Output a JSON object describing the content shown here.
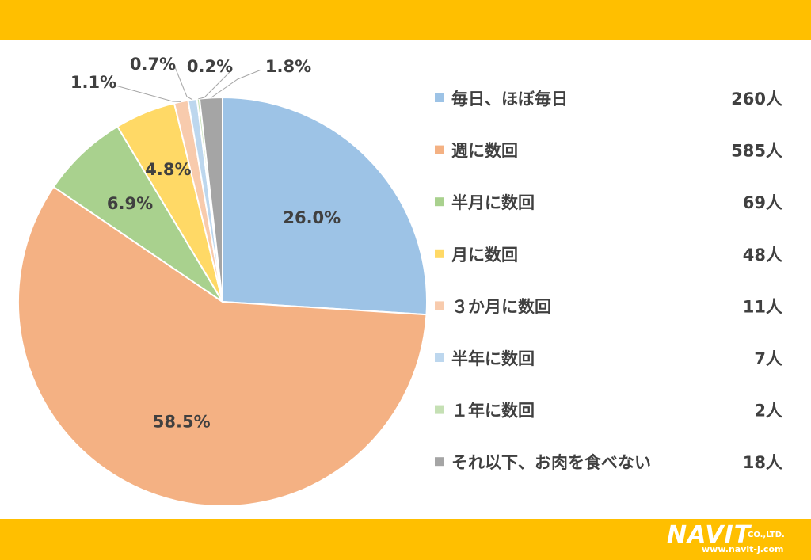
{
  "chart_data": {
    "type": "pie",
    "categories": [
      "毎日、ほぼ毎日",
      "週に数回",
      "半月に数回",
      "月に数回",
      "３か月に数回",
      "半年に数回",
      "１年に数回",
      "それ以下、お肉を食べない"
    ],
    "counts": [
      260,
      585,
      69,
      48,
      11,
      7,
      2,
      18
    ],
    "count_labels": [
      "260人",
      "585人",
      "69人",
      "48人",
      "11人",
      "7人",
      "2人",
      "18人"
    ],
    "percentages": [
      26.0,
      58.5,
      6.9,
      4.8,
      1.1,
      0.7,
      0.2,
      1.8
    ],
    "percent_labels": [
      "26.0%",
      "58.5%",
      "6.9%",
      "4.8%",
      "1.1%",
      "0.7%",
      "0.2%",
      "1.8%"
    ],
    "colors": [
      "#9dc3e6",
      "#f4b183",
      "#a9d18e",
      "#ffd966",
      "#f8cbad",
      "#bdd7ee",
      "#c5e0b4",
      "#a5a5a5"
    ],
    "start": "12 o'clock",
    "direction": "clockwise",
    "legend_position": "right"
  },
  "logo": {
    "name": "NAVIT",
    "suffix": "CO.,LTD.",
    "url": "www.navit-j.com"
  }
}
